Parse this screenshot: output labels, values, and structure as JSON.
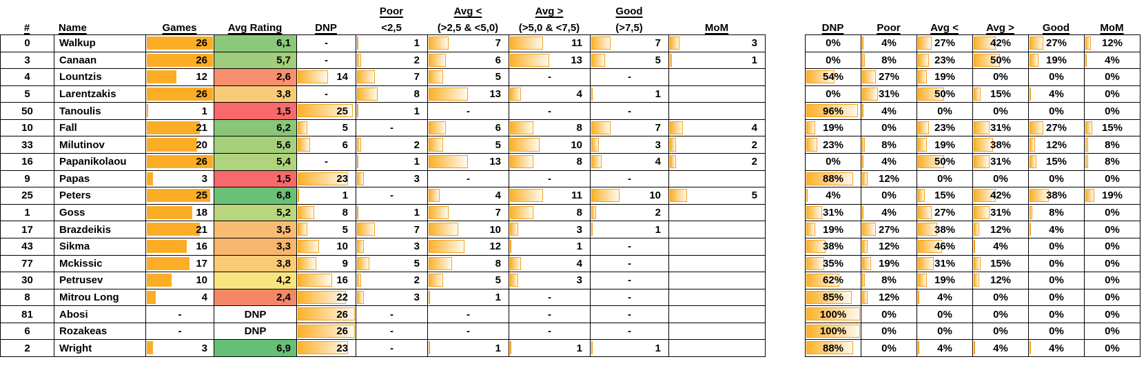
{
  "left_table": {
    "group_headers": {
      "poor": "Poor",
      "avg_lt": "Avg <",
      "avg_gt": "Avg >",
      "good": "Good"
    },
    "column_headers": {
      "num": "#",
      "name": "Name",
      "games": "Games",
      "avg_rating": "Avg Rating",
      "dnp": "DNP",
      "poor_sub": "<2,5",
      "avg_lt_sub": "(>2,5 & <5,0)",
      "avg_gt_sub": "(>5,0 & <7,5)",
      "good_sub": "(>7,5)",
      "mom": "MoM"
    }
  },
  "right_table": {
    "column_headers": {
      "dnp": "DNP",
      "poor": "Poor",
      "avg_lt": "Avg <",
      "avg_gt": "Avg >",
      "good": "Good",
      "mom": "MoM"
    }
  },
  "scales": {
    "counts_bar_max": 26,
    "pct_bar_max": 100
  },
  "colors": {
    "bar_solid": "#FBAD26",
    "bar_gradient_start": "#FCB12A",
    "bar_border": "#F5A11E",
    "grid_line": "#000000",
    "rating_scale_red": "#F8696B",
    "rating_scale_yellow": "#FFEB84",
    "rating_scale_green": "#63BE7B"
  },
  "players": [
    {
      "num": "0",
      "name": "Walkup",
      "games": "26",
      "rating": "6,1",
      "rating_color": "#8CC87A",
      "counts": [
        "-",
        "1",
        "7",
        "11",
        "7",
        "3"
      ],
      "pct": [
        "0%",
        "4%",
        "27%",
        "42%",
        "27%",
        "12%"
      ]
    },
    {
      "num": "3",
      "name": "Canaan",
      "games": "26",
      "rating": "5,7",
      "rating_color": "#A0CE7C",
      "counts": [
        "-",
        "2",
        "6",
        "13",
        "5",
        "1"
      ],
      "pct": [
        "0%",
        "8%",
        "23%",
        "50%",
        "19%",
        "4%"
      ]
    },
    {
      "num": "4",
      "name": "Lountzis",
      "games": "12",
      "rating": "2,6",
      "rating_color": "#F6906E",
      "counts": [
        "14",
        "7",
        "5",
        "-",
        "-",
        ""
      ],
      "pct": [
        "54%",
        "27%",
        "19%",
        "0%",
        "0%",
        "0%"
      ]
    },
    {
      "num": "5",
      "name": "Larentzakis",
      "games": "26",
      "rating": "3,8",
      "rating_color": "#FACB77",
      "counts": [
        "-",
        "8",
        "13",
        "4",
        "1",
        ""
      ],
      "pct": [
        "0%",
        "31%",
        "50%",
        "15%",
        "4%",
        "0%"
      ]
    },
    {
      "num": "50",
      "name": "Tanoulis",
      "games": "1",
      "rating": "1,5",
      "rating_color": "#F8696B",
      "counts": [
        "25",
        "1",
        "-",
        "-",
        "-",
        ""
      ],
      "pct": [
        "96%",
        "4%",
        "0%",
        "0%",
        "0%",
        "0%"
      ]
    },
    {
      "num": "10",
      "name": "Fall",
      "games": "21",
      "rating": "6,2",
      "rating_color": "#88C77A",
      "counts": [
        "5",
        "-",
        "6",
        "8",
        "7",
        "4"
      ],
      "pct": [
        "19%",
        "0%",
        "23%",
        "31%",
        "27%",
        "15%"
      ]
    },
    {
      "num": "33",
      "name": "Milutinov",
      "games": "20",
      "rating": "5,6",
      "rating_color": "#A6D07C",
      "counts": [
        "6",
        "2",
        "5",
        "10",
        "3",
        "2"
      ],
      "pct": [
        "23%",
        "8%",
        "19%",
        "38%",
        "12%",
        "8%"
      ]
    },
    {
      "num": "16",
      "name": "Papanikolaou",
      "games": "26",
      "rating": "5,4",
      "rating_color": "#B0D37D",
      "counts": [
        "-",
        "1",
        "13",
        "8",
        "4",
        "2"
      ],
      "pct": [
        "0%",
        "4%",
        "50%",
        "31%",
        "15%",
        "8%"
      ]
    },
    {
      "num": "9",
      "name": "Papas",
      "games": "3",
      "rating": "1,5",
      "rating_color": "#F8696B",
      "counts": [
        "23",
        "3",
        "-",
        "-",
        "-",
        ""
      ],
      "pct": [
        "88%",
        "12%",
        "0%",
        "0%",
        "0%",
        "0%"
      ]
    },
    {
      "num": "25",
      "name": "Peters",
      "games": "25",
      "rating": "6,8",
      "rating_color": "#6BC077",
      "counts": [
        "1",
        "-",
        "4",
        "11",
        "10",
        "5"
      ],
      "pct": [
        "4%",
        "0%",
        "15%",
        "42%",
        "38%",
        "19%"
      ]
    },
    {
      "num": "1",
      "name": "Goss",
      "games": "18",
      "rating": "5,2",
      "rating_color": "#B9D67E",
      "counts": [
        "8",
        "1",
        "7",
        "8",
        "2",
        ""
      ],
      "pct": [
        "31%",
        "4%",
        "27%",
        "31%",
        "8%",
        "0%"
      ]
    },
    {
      "num": "17",
      "name": "Brazdeikis",
      "games": "21",
      "rating": "3,5",
      "rating_color": "#F9BC72",
      "counts": [
        "5",
        "7",
        "10",
        "3",
        "1",
        ""
      ],
      "pct": [
        "19%",
        "27%",
        "38%",
        "12%",
        "4%",
        "0%"
      ]
    },
    {
      "num": "43",
      "name": "Sikma",
      "games": "16",
      "rating": "3,3",
      "rating_color": "#F8B56E",
      "counts": [
        "10",
        "3",
        "12",
        "1",
        "-",
        ""
      ],
      "pct": [
        "38%",
        "12%",
        "46%",
        "4%",
        "0%",
        "0%"
      ]
    },
    {
      "num": "77",
      "name": "Mckissic",
      "games": "17",
      "rating": "3,8",
      "rating_color": "#FACB77",
      "counts": [
        "9",
        "5",
        "8",
        "4",
        "-",
        ""
      ],
      "pct": [
        "35%",
        "19%",
        "31%",
        "15%",
        "0%",
        "0%"
      ]
    },
    {
      "num": "30",
      "name": "Petrusev",
      "games": "10",
      "rating": "4,2",
      "rating_color": "#F9E57F",
      "counts": [
        "16",
        "2",
        "5",
        "3",
        "-",
        ""
      ],
      "pct": [
        "62%",
        "8%",
        "19%",
        "12%",
        "0%",
        "0%"
      ]
    },
    {
      "num": "8",
      "name": "Mitrou Long",
      "games": "4",
      "rating": "2,4",
      "rating_color": "#F58769",
      "counts": [
        "22",
        "3",
        "1",
        "-",
        "-",
        ""
      ],
      "pct": [
        "85%",
        "12%",
        "4%",
        "0%",
        "0%",
        "0%"
      ]
    },
    {
      "num": "81",
      "name": "Abosi",
      "games": "-",
      "rating": "DNP",
      "rating_color": "",
      "counts": [
        "26",
        "-",
        "-",
        "-",
        "-",
        ""
      ],
      "pct": [
        "100%",
        "0%",
        "0%",
        "0%",
        "0%",
        "0%"
      ]
    },
    {
      "num": "6",
      "name": "Rozakeas",
      "games": "-",
      "rating": "DNP",
      "rating_color": "",
      "counts": [
        "26",
        "-",
        "-",
        "-",
        "-",
        ""
      ],
      "pct": [
        "100%",
        "0%",
        "0%",
        "0%",
        "0%",
        "0%"
      ]
    },
    {
      "num": "2",
      "name": "Wright",
      "games": "3",
      "rating": "6,9",
      "rating_color": "#66BF76",
      "counts": [
        "23",
        "-",
        "1",
        "1",
        "1",
        ""
      ],
      "pct": [
        "88%",
        "0%",
        "4%",
        "4%",
        "4%",
        "0%"
      ]
    }
  ]
}
